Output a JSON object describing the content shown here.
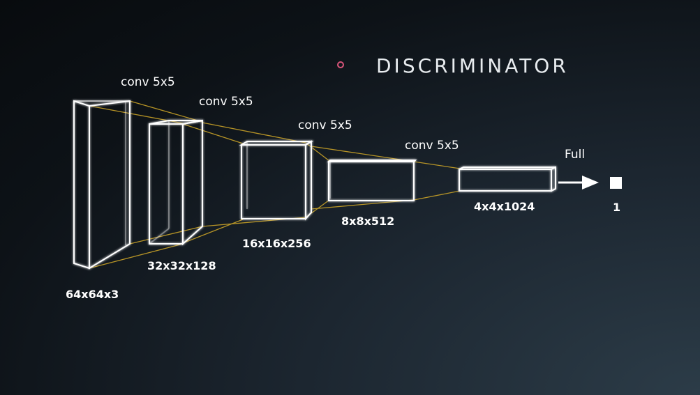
{
  "title": "DISCRIMINATOR",
  "layers": [
    {
      "size_label": "64x64x3",
      "conv_label": "conv 5x5"
    },
    {
      "size_label": "32x32x128",
      "conv_label": "conv 5x5"
    },
    {
      "size_label": "16x16x256",
      "conv_label": "conv 5x5"
    },
    {
      "size_label": "8x8x512",
      "conv_label": "conv 5x5"
    },
    {
      "size_label": "4x4x1024"
    }
  ],
  "final": {
    "connection_label": "Full",
    "output_label": "1"
  },
  "colors": {
    "box_stroke": "#ffffff",
    "connector": "#c9a227",
    "title_dot": "#d9557a"
  }
}
